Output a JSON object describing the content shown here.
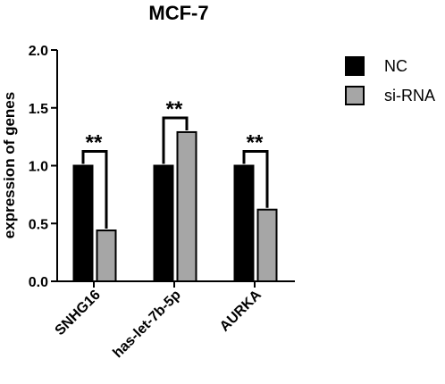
{
  "chart_data": {
    "type": "bar",
    "title": "MCF-7",
    "xlabel": "",
    "ylabel": "expression of genes",
    "ylim": [
      0,
      2.0
    ],
    "yticks": [
      "0.0",
      "0.5",
      "1.0",
      "1.5",
      "2.0"
    ],
    "categories": [
      "SNHG16",
      "has-let-7b-5p",
      "AURKA"
    ],
    "series": [
      {
        "name": "NC",
        "values": [
          1.0,
          1.0,
          1.0
        ],
        "color": "#000000"
      },
      {
        "name": "si-RNA",
        "values": [
          0.44,
          1.29,
          0.62
        ],
        "color": "#a6a6a6"
      }
    ],
    "significance": [
      "**",
      "**",
      "**"
    ],
    "legend_position": "top-right",
    "grid": false
  }
}
